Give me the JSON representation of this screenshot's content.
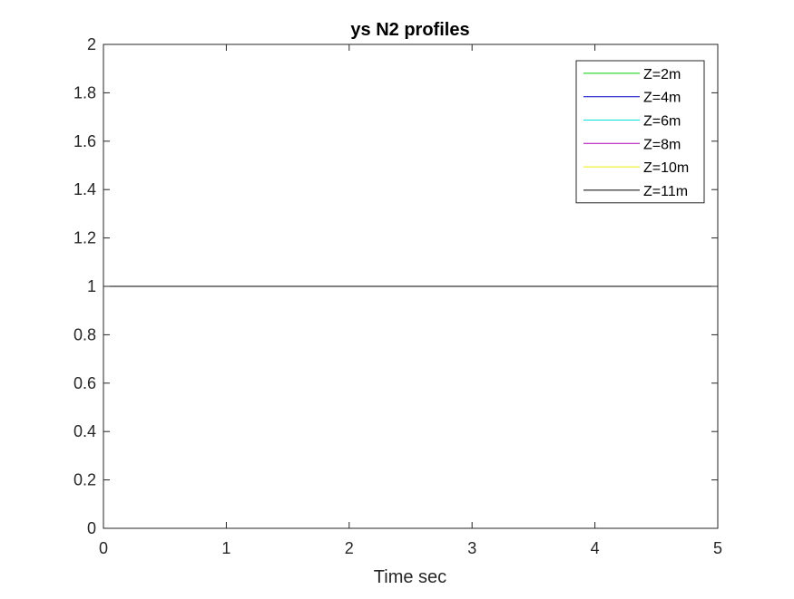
{
  "chart_data": {
    "type": "line",
    "title": "ys N2 profiles",
    "xlabel": "Time sec",
    "ylabel": "",
    "xlim": [
      0,
      5
    ],
    "ylim": [
      0,
      2
    ],
    "xticks": [
      0,
      1,
      2,
      3,
      4,
      5
    ],
    "yticks": [
      0,
      0.2,
      0.4,
      0.6,
      0.8,
      1,
      1.2,
      1.4,
      1.6,
      1.8,
      2
    ],
    "xtick_labels": [
      "0",
      "1",
      "2",
      "3",
      "4",
      "5"
    ],
    "ytick_labels": [
      "0",
      "0.2",
      "0.4",
      "0.6",
      "0.8",
      "1",
      "1.2",
      "1.4",
      "1.6",
      "1.8",
      "2"
    ],
    "grid": false,
    "legend_position": "top-right",
    "series": [
      {
        "name": "Z=2m",
        "color": "#00cc00",
        "x": [
          0,
          5
        ],
        "y": [
          1,
          1
        ]
      },
      {
        "name": "Z=4m",
        "color": "#0000cc",
        "x": [
          0,
          5
        ],
        "y": [
          1,
          1
        ]
      },
      {
        "name": "Z=6m",
        "color": "#00dddd",
        "x": [
          0,
          5
        ],
        "y": [
          1,
          1
        ]
      },
      {
        "name": "Z=8m",
        "color": "#b000b0",
        "x": [
          0,
          5
        ],
        "y": [
          1,
          1
        ]
      },
      {
        "name": "Z=10m",
        "color": "#eeee00",
        "x": [
          0,
          5
        ],
        "y": [
          1,
          1
        ]
      },
      {
        "name": "Z=11m",
        "color": "#000000",
        "x": [
          0,
          5
        ],
        "y": [
          1,
          1
        ]
      }
    ]
  }
}
